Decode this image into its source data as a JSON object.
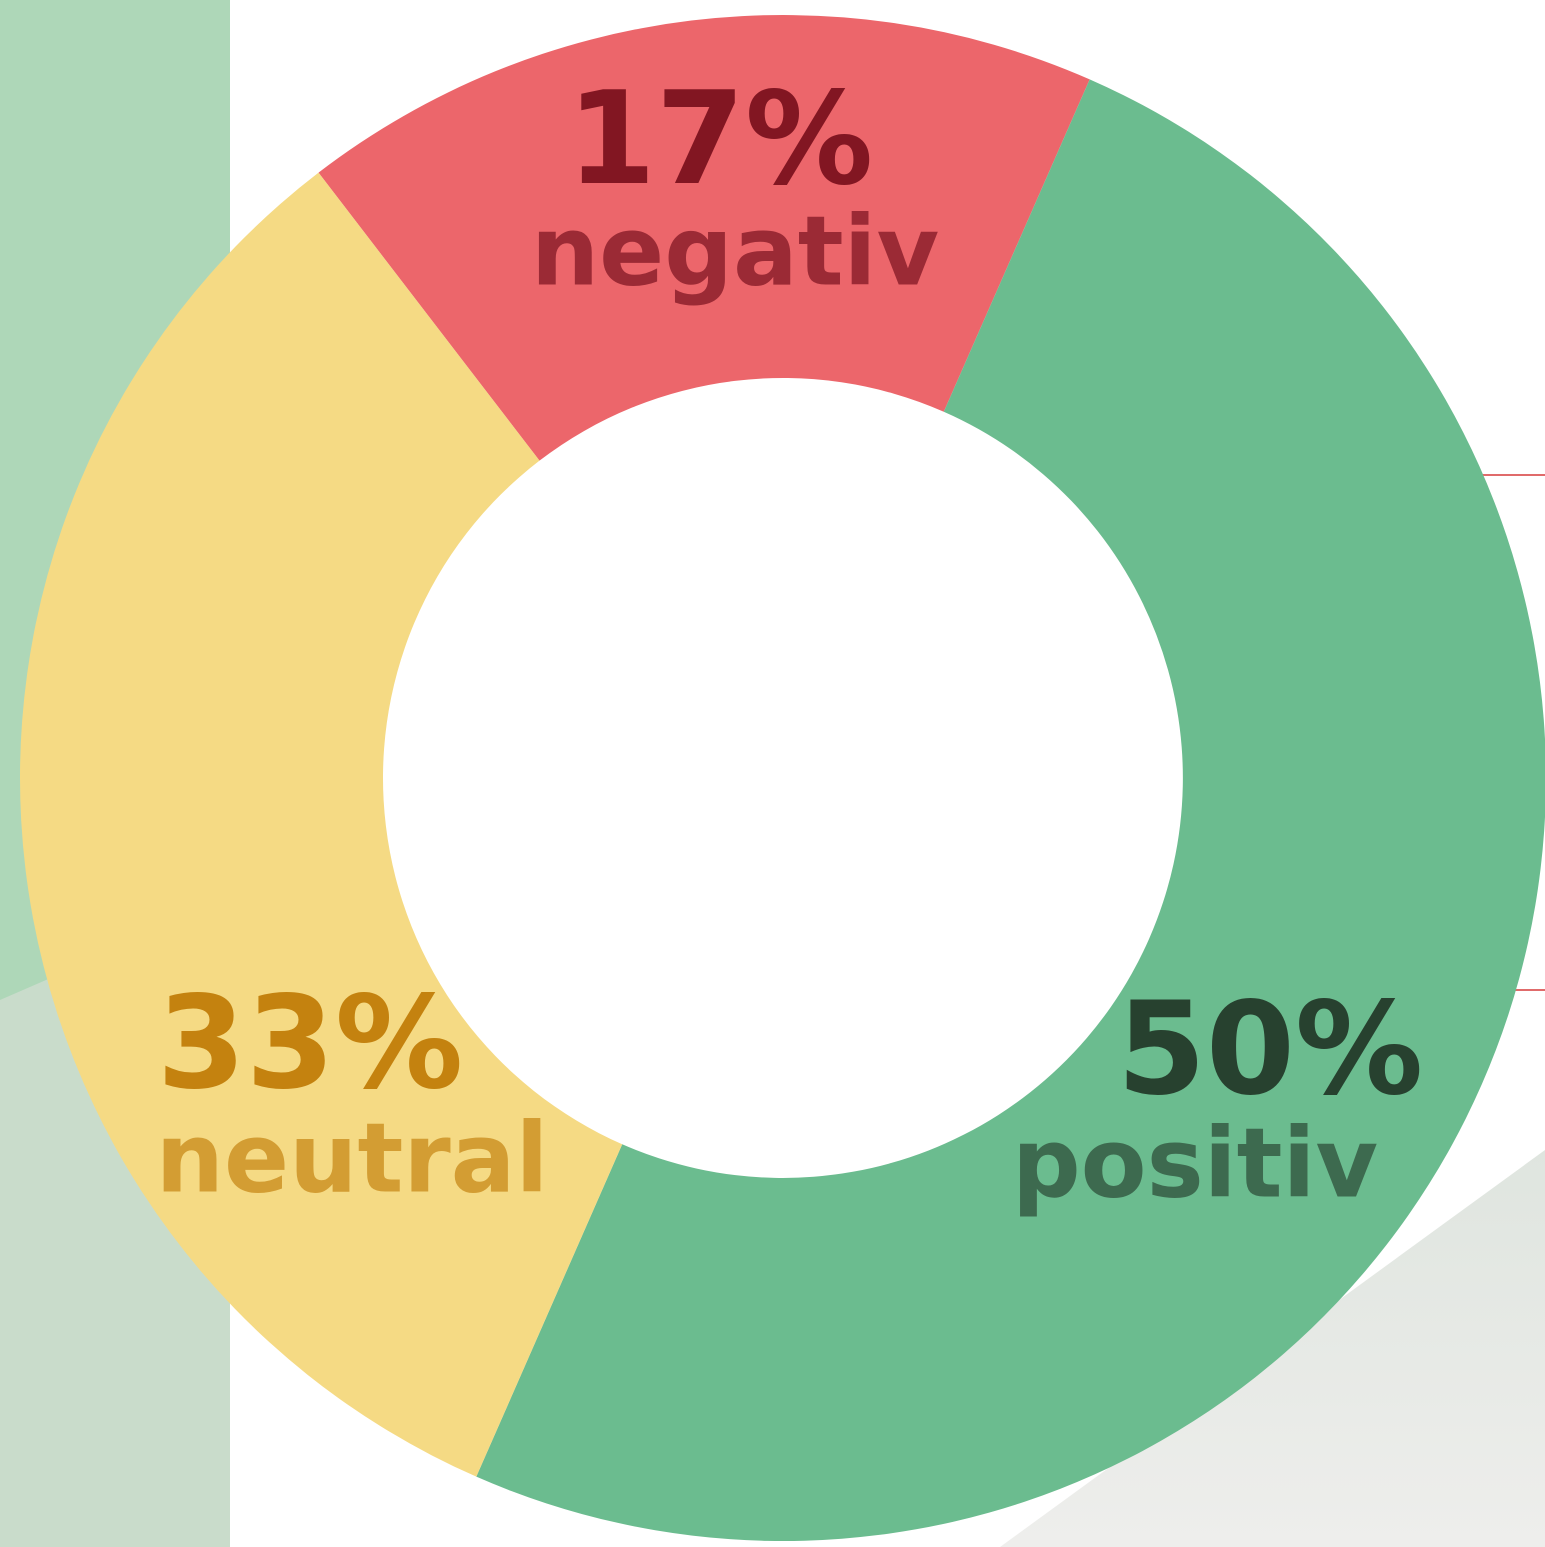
{
  "chart_data": {
    "type": "donut",
    "categories": [
      "negativ",
      "positiv",
      "neutral"
    ],
    "values": [
      17,
      50,
      33
    ],
    "value_labels": [
      "17%",
      "50%",
      "33%"
    ],
    "colors": [
      "#ec666b",
      "#6bbc8f",
      "#f5da84"
    ]
  }
}
